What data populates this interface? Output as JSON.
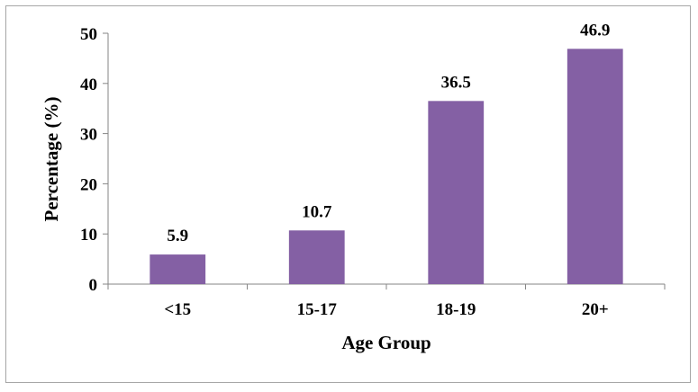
{
  "chart_data": {
    "type": "bar",
    "title": "",
    "xlabel": "Age Group",
    "ylabel": "Percentage (%)",
    "categories": [
      "<15",
      "15-17",
      "18-19",
      "20+"
    ],
    "values": [
      5.9,
      10.7,
      36.5,
      46.9
    ],
    "data_labels": [
      "5.9",
      "10.7",
      "36.5",
      "46.9"
    ],
    "ylim": [
      0,
      50
    ],
    "yticks": [
      0,
      10,
      20,
      30,
      40,
      50
    ],
    "bar_color": "#8460a4",
    "grid": false,
    "legend": "none"
  }
}
